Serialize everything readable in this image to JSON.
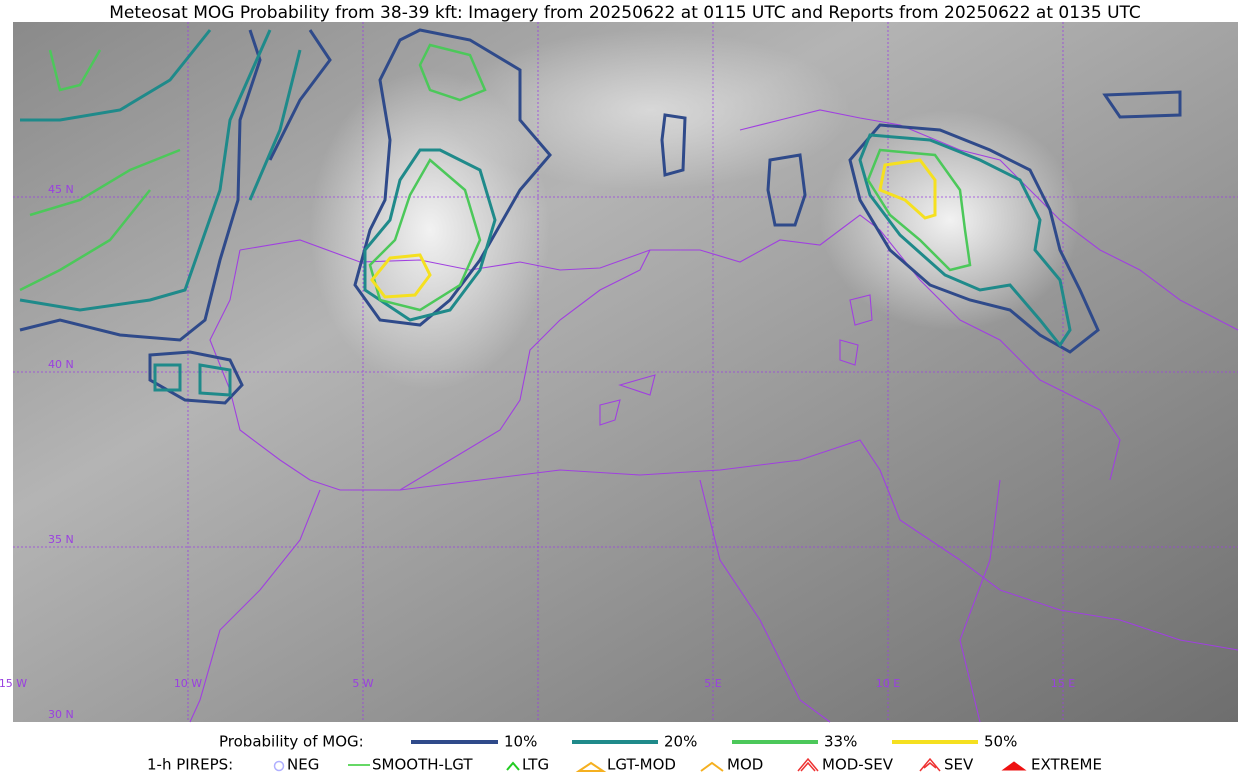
{
  "title": "Meteosat MOG Probability from 38-39 kft: Imagery from 20250622 at 0115 UTC and Reports from 20250622 at 0135 UTC",
  "grid_labels": {
    "lat": [
      "45 N",
      "40 N",
      "35 N",
      "30 N"
    ],
    "lon": [
      "15 W",
      "10 W",
      "5 W",
      "5 E",
      "10 E",
      "15 E"
    ]
  },
  "legend": {
    "probability": {
      "label": "Probability of MOG:",
      "items": [
        "10%",
        "20%",
        "33%",
        "50%"
      ]
    },
    "pireps": {
      "label": "1-h PIREPS:",
      "items": [
        "NEG",
        "SMOOTH-LGT",
        "LTG",
        "LGT-MOD",
        "MOD",
        "MOD-SEV",
        "SEV",
        "EXTREME"
      ]
    }
  }
}
